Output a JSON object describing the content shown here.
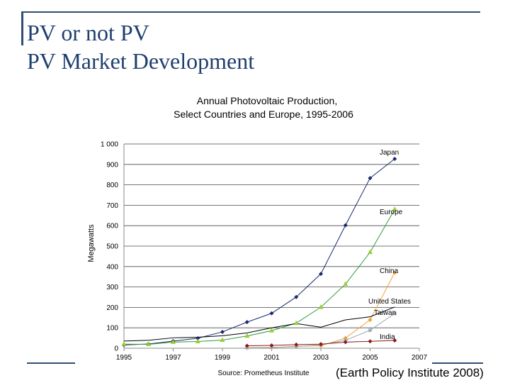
{
  "slide": {
    "title_line1": "PV or not PV",
    "title_line2": "PV Market Development",
    "credit": "(Earth Policy Institute 2008)"
  },
  "chart_data": {
    "type": "line",
    "title_line1": "Annual Photovoltaic Production,",
    "title_line2": "Select Countries and Europe, 1995-2006",
    "xlabel": "",
    "ylabel": "Megawatts",
    "source": "Source: Prometheus Institute",
    "xlim": [
      1995,
      2007
    ],
    "ylim": [
      0,
      1000
    ],
    "x_ticks": [
      1995,
      1997,
      1999,
      2001,
      2003,
      2005,
      2007
    ],
    "x_tick_labels": [
      "1995",
      "1997",
      "1999",
      "2001",
      "2003",
      "2005",
      "2007"
    ],
    "y_ticks": [
      0,
      100,
      200,
      300,
      400,
      500,
      600,
      700,
      800,
      900,
      1000
    ],
    "y_tick_labels": [
      "0",
      "100",
      "200",
      "300",
      "400",
      "500",
      "600",
      "700",
      "800",
      "900",
      "1 000"
    ],
    "grid": true,
    "series": [
      {
        "name": "Japan",
        "color": "#1a2a6c",
        "marker": "diamond",
        "x": [
          1995,
          1996,
          1997,
          1998,
          1999,
          2000,
          2001,
          2002,
          2003,
          2004,
          2005,
          2006
        ],
        "values": [
          16,
          21,
          35,
          49,
          80,
          128,
          171,
          251,
          364,
          602,
          833,
          927
        ]
      },
      {
        "name": "Europe",
        "color": "#2e9a3a",
        "marker": "triangle",
        "marker_color": "#9acd32",
        "x": [
          1995,
          1996,
          1997,
          1998,
          1999,
          2000,
          2001,
          2002,
          2003,
          2004,
          2005,
          2006
        ],
        "values": [
          20,
          19,
          30,
          33,
          40,
          60,
          86,
          123,
          201,
          314,
          470,
          680
        ]
      },
      {
        "name": "China",
        "color": "#f0a030",
        "marker": "diamond",
        "x": [
          2000,
          2001,
          2002,
          2003,
          2004,
          2005,
          2006
        ],
        "values": [
          3,
          3,
          10,
          12,
          50,
          139,
          370
        ]
      },
      {
        "name": "United States",
        "color": "#000000",
        "marker": "none",
        "x": [
          1995,
          1996,
          1997,
          1998,
          1999,
          2000,
          2001,
          2002,
          2003,
          2004,
          2005,
          2006
        ],
        "values": [
          35,
          39,
          51,
          54,
          61,
          75,
          100,
          121,
          103,
          139,
          154,
          202
        ]
      },
      {
        "name": "Taiwan",
        "color": "#9aa6b2",
        "marker": "star",
        "x": [
          2000,
          2001,
          2002,
          2003,
          2004,
          2005,
          2006
        ],
        "values": [
          2,
          4,
          8,
          17,
          39,
          88,
          170
        ]
      },
      {
        "name": "India",
        "color": "#8b1a1a",
        "marker": "diamond",
        "x": [
          2000,
          2001,
          2002,
          2003,
          2004,
          2005,
          2006
        ],
        "values": [
          12,
          14,
          18,
          20,
          30,
          34,
          38
        ]
      }
    ]
  }
}
